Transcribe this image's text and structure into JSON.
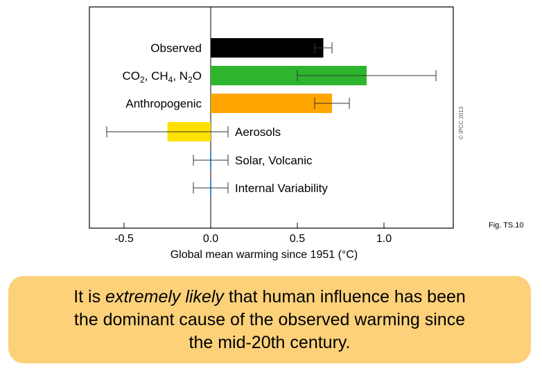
{
  "chart_data": {
    "type": "bar",
    "orientation": "horizontal",
    "categories": [
      {
        "label": "Observed"
      },
      {
        "label": "CO",
        "parts": [
          {
            "t": "CO"
          },
          {
            "t": "2",
            "sub": true
          },
          {
            "t": ", CH"
          },
          {
            "t": "4",
            "sub": true
          },
          {
            "t": ", N"
          },
          {
            "t": "2",
            "sub": true
          },
          {
            "t": "O"
          }
        ]
      },
      {
        "label": "Anthropogenic"
      },
      {
        "label": "Aerosols"
      },
      {
        "label": "Solar, Volcanic"
      },
      {
        "label": "Internal Variability"
      }
    ],
    "values": [
      0.65,
      0.9,
      0.7,
      -0.25,
      0.0,
      0.0
    ],
    "error_low": [
      0.6,
      0.5,
      0.6,
      -0.6,
      -0.1,
      -0.1
    ],
    "error_high": [
      0.7,
      1.3,
      0.8,
      0.1,
      0.1,
      0.1
    ],
    "colors": [
      "#000000",
      "#2db52d",
      "#ffa500",
      "#ffe100",
      "#3a86d4",
      "#3a86d4"
    ],
    "xlabel": "Global mean warming since 1951 (°C)",
    "xlim": [
      -0.7,
      1.4
    ],
    "xticks": [
      -0.5,
      0.0,
      0.5,
      1.0
    ],
    "xtick_labels": [
      "-0.5",
      "0.0",
      "0.5",
      "1.0"
    ],
    "grid": false,
    "zero_line": true
  },
  "figure": {
    "label": "Fig. TS.10",
    "copyright": "© IPCC 2013"
  },
  "callout": {
    "text_before": "It is ",
    "emphasis": "extremely likely",
    "text_after": " that human influence has been the dominant cause of the observed warming since the mid-20th century.",
    "background": "#fcd17a"
  }
}
